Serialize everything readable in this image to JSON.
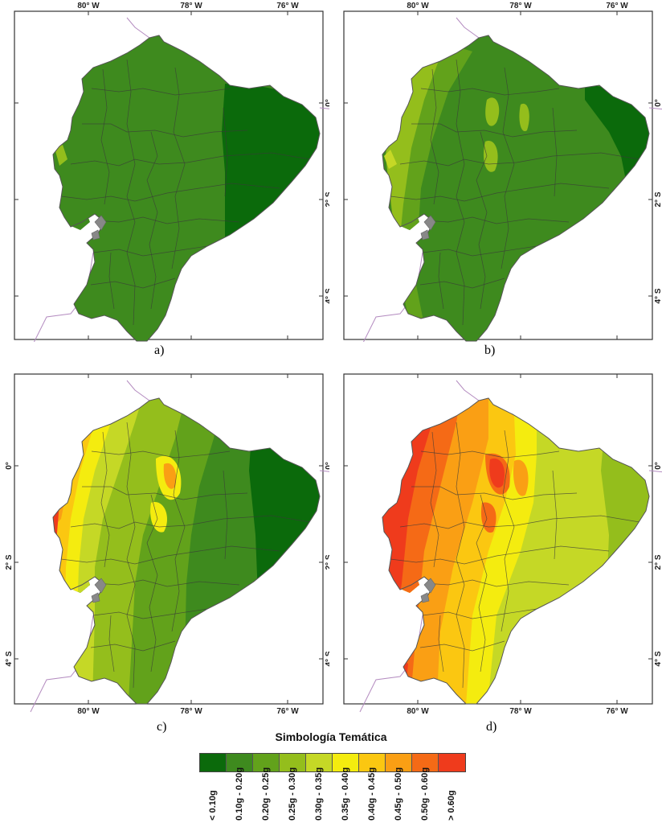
{
  "maps": [
    {
      "id": "a",
      "caption": "a)",
      "top_labels": [
        "80° W",
        "78° W",
        "76° W"
      ],
      "bottom_labels": [],
      "left_labels": [],
      "right_labels": [
        "0°",
        "2° S",
        "4° S"
      ]
    },
    {
      "id": "b",
      "caption": "b)",
      "top_labels": [
        "80° W",
        "78° W",
        "76° W"
      ],
      "bottom_labels": [],
      "left_labels": [],
      "right_labels": [
        "0°",
        "2° S",
        "4° S"
      ]
    },
    {
      "id": "c",
      "caption": "c)",
      "top_labels": [],
      "bottom_labels": [
        "80° W",
        "78° W",
        "76° W"
      ],
      "left_labels": [
        "0°",
        "2° S",
        "4° S"
      ],
      "right_labels": [
        "0°",
        "2° S",
        "4° S"
      ]
    },
    {
      "id": "d",
      "caption": "d)",
      "top_labels": [],
      "bottom_labels": [
        "80° W",
        "78° W",
        "76° W"
      ],
      "left_labels": [],
      "right_labels": [
        "0°",
        "2° S",
        "4° S"
      ]
    }
  ],
  "legend": {
    "title": "Simbología Temática",
    "classes": [
      {
        "label": "< 0.10g",
        "color": "#0b6a0b"
      },
      {
        "label": "0.10g - 0.20g",
        "color": "#3e8a1e"
      },
      {
        "label": "0.20g - 0.25g",
        "color": "#62a21b"
      },
      {
        "label": "0.25g - 0.30g",
        "color": "#94be1c"
      },
      {
        "label": "0.30g - 0.35g",
        "color": "#c5d826"
      },
      {
        "label": "0.35g - 0.40g",
        "color": "#f4ec0f"
      },
      {
        "label": "0.40g - 0.45g",
        "color": "#fbc711"
      },
      {
        "label": "0.45g - 0.50g",
        "color": "#fa9f14"
      },
      {
        "label": "0.50g - 0.60g",
        "color": "#f56a16"
      },
      {
        "label": "> 0.60g",
        "color": "#ef3b1c"
      }
    ]
  }
}
